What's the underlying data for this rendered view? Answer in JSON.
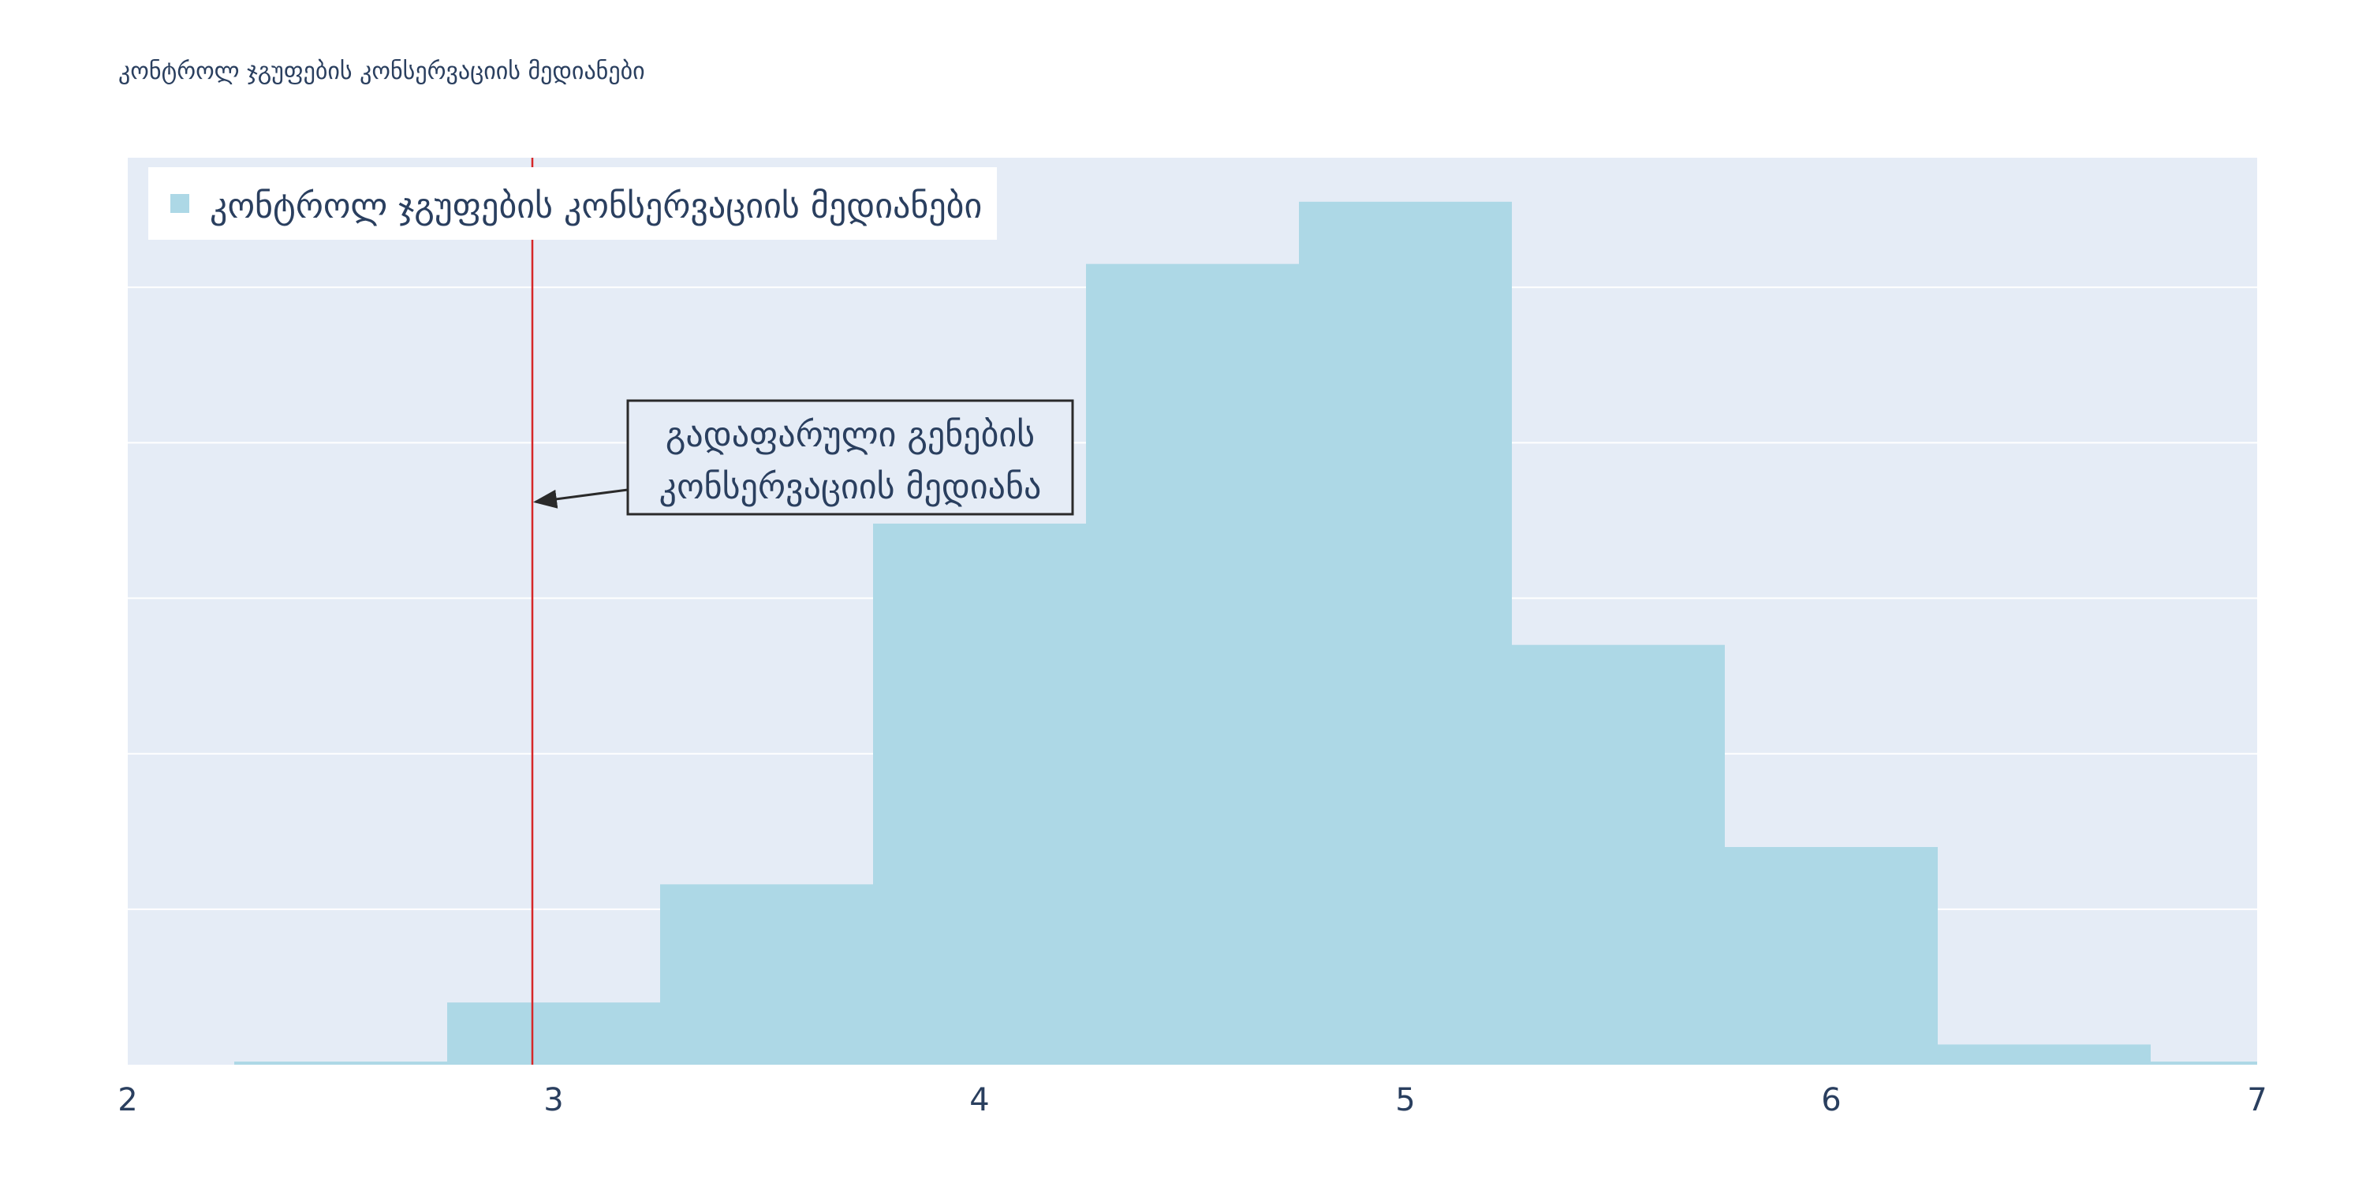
{
  "chart_data": {
    "type": "bar",
    "title": "კონტროლ ჯგუფების კონსერვაციის მედიანები",
    "xlabel": "",
    "ylabel": "",
    "xlim": [
      2,
      7
    ],
    "ylim": [
      0,
      0.5833
    ],
    "x_ticks": [
      2,
      3,
      4,
      5,
      6,
      7
    ],
    "y_gridlines": [
      0.1,
      0.2,
      0.3,
      0.4,
      0.5
    ],
    "y_tick_labels_visible": false,
    "grid": true,
    "bin_width": 0.5,
    "bins": [
      {
        "x0": 2.25,
        "x1": 2.75,
        "value": 0.002
      },
      {
        "x0": 2.75,
        "x1": 3.25,
        "value": 0.04
      },
      {
        "x0": 3.25,
        "x1": 3.75,
        "value": 0.116
      },
      {
        "x0": 3.75,
        "x1": 4.25,
        "value": 0.348
      },
      {
        "x0": 4.25,
        "x1": 4.75,
        "value": 0.515
      },
      {
        "x0": 4.75,
        "x1": 5.25,
        "value": 0.555
      },
      {
        "x0": 5.25,
        "x1": 5.75,
        "value": 0.27
      },
      {
        "x0": 5.75,
        "x1": 6.25,
        "value": 0.14
      },
      {
        "x0": 6.25,
        "x1": 6.75,
        "value": 0.013
      },
      {
        "x0": 6.75,
        "x1": 7.25,
        "value": 0.002
      }
    ],
    "legend": {
      "placement": "top-left",
      "entries": [
        {
          "name": "კონტროლ ჯგუფების კონსერვაციის მედიანები",
          "color": "#add8e6"
        }
      ]
    },
    "reference_line": {
      "x": 2.95,
      "color": "#d62728"
    },
    "annotation": {
      "lines": [
        "გადაფარული გენების",
        "კონსერვაციის მედიანა"
      ],
      "points_to_x": 2.95,
      "points_to_y": 0.362
    },
    "colors": {
      "bar": "#add8e6",
      "plot_background": "#e5ecf6",
      "grid": "#ffffff",
      "text": "#2a3f5f"
    }
  }
}
